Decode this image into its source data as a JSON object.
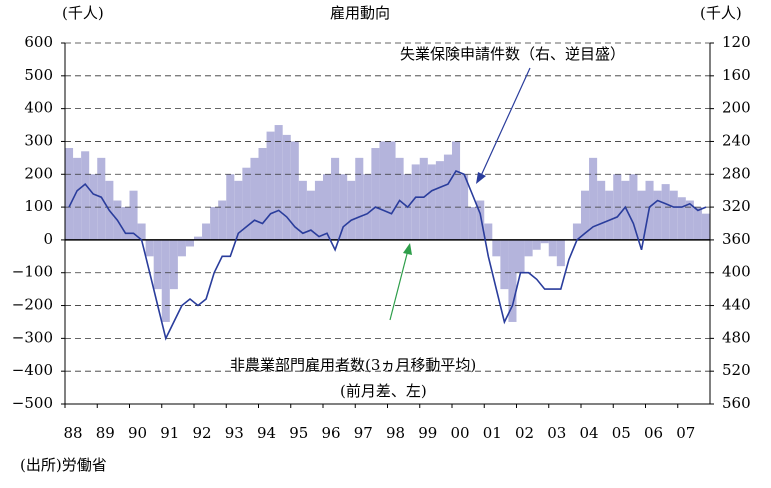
{
  "chart_data": {
    "type": "bar_line_dual",
    "title": "雇用動向",
    "y_unit_left": "(千人)",
    "y_unit_right": "(千人)",
    "annotations": [
      "失業保険申請件数（右、逆目盛）",
      "非農業部門雇用者数(3ヵ月移動平均)",
      "(前月差、左)"
    ],
    "source": "(出所)労働省",
    "x": [
      1988.125,
      1988.375,
      1988.625,
      1988.875,
      1989.125,
      1989.375,
      1989.625,
      1989.875,
      1990.125,
      1990.375,
      1990.625,
      1990.875,
      1991.125,
      1991.375,
      1991.625,
      1991.875,
      1992.125,
      1992.375,
      1992.625,
      1992.875,
      1993.125,
      1993.375,
      1993.625,
      1993.875,
      1994.125,
      1994.375,
      1994.625,
      1994.875,
      1995.125,
      1995.375,
      1995.625,
      1995.875,
      1996.125,
      1996.375,
      1996.625,
      1996.875,
      1997.125,
      1997.375,
      1997.625,
      1997.875,
      1998.125,
      1998.375,
      1998.625,
      1998.875,
      1999.125,
      1999.375,
      1999.625,
      1999.875,
      2000.125,
      2000.375,
      2000.625,
      2000.875,
      2001.125,
      2001.375,
      2001.625,
      2001.875,
      2002.125,
      2002.375,
      2002.625,
      2002.875,
      2003.125,
      2003.375,
      2003.625,
      2003.875,
      2004.125,
      2004.375,
      2004.625,
      2004.875,
      2005.125,
      2005.375,
      2005.625,
      2005.875,
      2006.125,
      2006.375,
      2006.625,
      2006.875,
      2007.125,
      2007.375,
      2007.625,
      2007.875
    ],
    "xlim": [
      1988,
      2008
    ],
    "xticks": [
      {
        "value": 1988,
        "label": "88"
      },
      {
        "value": 1989,
        "label": "89"
      },
      {
        "value": 1990,
        "label": "90"
      },
      {
        "value": 1991,
        "label": "91"
      },
      {
        "value": 1992,
        "label": "92"
      },
      {
        "value": 1993,
        "label": "93"
      },
      {
        "value": 1994,
        "label": "94"
      },
      {
        "value": 1995,
        "label": "95"
      },
      {
        "value": 1996,
        "label": "96"
      },
      {
        "value": 1997,
        "label": "97"
      },
      {
        "value": 1998,
        "label": "98"
      },
      {
        "value": 1999,
        "label": "99"
      },
      {
        "value": 2000,
        "label": "00"
      },
      {
        "value": 2001,
        "label": "01"
      },
      {
        "value": 2002,
        "label": "02"
      },
      {
        "value": 2003,
        "label": "03"
      },
      {
        "value": 2004,
        "label": "04"
      },
      {
        "value": 2005,
        "label": "05"
      },
      {
        "value": 2006,
        "label": "06"
      },
      {
        "value": 2007,
        "label": "07"
      }
    ],
    "ylim": [
      -500,
      600
    ],
    "yticks": [
      {
        "value": -500,
        "label": "−500"
      },
      {
        "value": -400,
        "label": "−400"
      },
      {
        "value": -300,
        "label": "−300"
      },
      {
        "value": -200,
        "label": "−200"
      },
      {
        "value": -100,
        "label": "−100"
      },
      0,
      100,
      200,
      300,
      400,
      500,
      600
    ],
    "y2lim": [
      560,
      120
    ],
    "y2ticks": [
      120,
      160,
      200,
      240,
      280,
      320,
      360,
      400,
      440,
      480,
      520,
      560
    ],
    "grid": true,
    "series": [
      {
        "name": "非農業部門雇用者数",
        "color": "#b4b4dc",
        "kind": "bar",
        "values": [
          280,
          250,
          270,
          200,
          250,
          180,
          120,
          100,
          150,
          50,
          -50,
          -150,
          -250,
          -150,
          -50,
          -20,
          10,
          50,
          100,
          120,
          200,
          180,
          220,
          250,
          280,
          330,
          350,
          320,
          300,
          180,
          150,
          180,
          200,
          250,
          200,
          180,
          250,
          200,
          280,
          300,
          300,
          250,
          200,
          230,
          250,
          230,
          240,
          260,
          300,
          200,
          100,
          120,
          50,
          -50,
          -150,
          -250,
          -100,
          -50,
          -30,
          -10,
          -50,
          -80,
          0,
          50,
          150,
          250,
          180,
          150,
          200,
          180,
          200,
          150,
          180,
          150,
          170,
          150,
          130,
          120,
          100,
          80
        ]
      },
      {
        "name": "失業保険申請件数",
        "color": "#2a3d9c",
        "kind": "line",
        "axis": "y2",
        "values": [
          320,
          300,
          292,
          304,
          308,
          324,
          336,
          352,
          352,
          360,
          400,
          440,
          480,
          460,
          440,
          432,
          440,
          432,
          400,
          380,
          380,
          352,
          344,
          336,
          340,
          328,
          324,
          332,
          344,
          352,
          348,
          356,
          352,
          372,
          344,
          336,
          332,
          328,
          320,
          324,
          328,
          312,
          320,
          308,
          308,
          300,
          296,
          292,
          276,
          280,
          304,
          328,
          380,
          420,
          460,
          440,
          400,
          400,
          408,
          420,
          420,
          420,
          384,
          360,
          352,
          344,
          340,
          336,
          332,
          320,
          340,
          372,
          320,
          312,
          316,
          320,
          320,
          316,
          324,
          320
        ]
      }
    ]
  }
}
